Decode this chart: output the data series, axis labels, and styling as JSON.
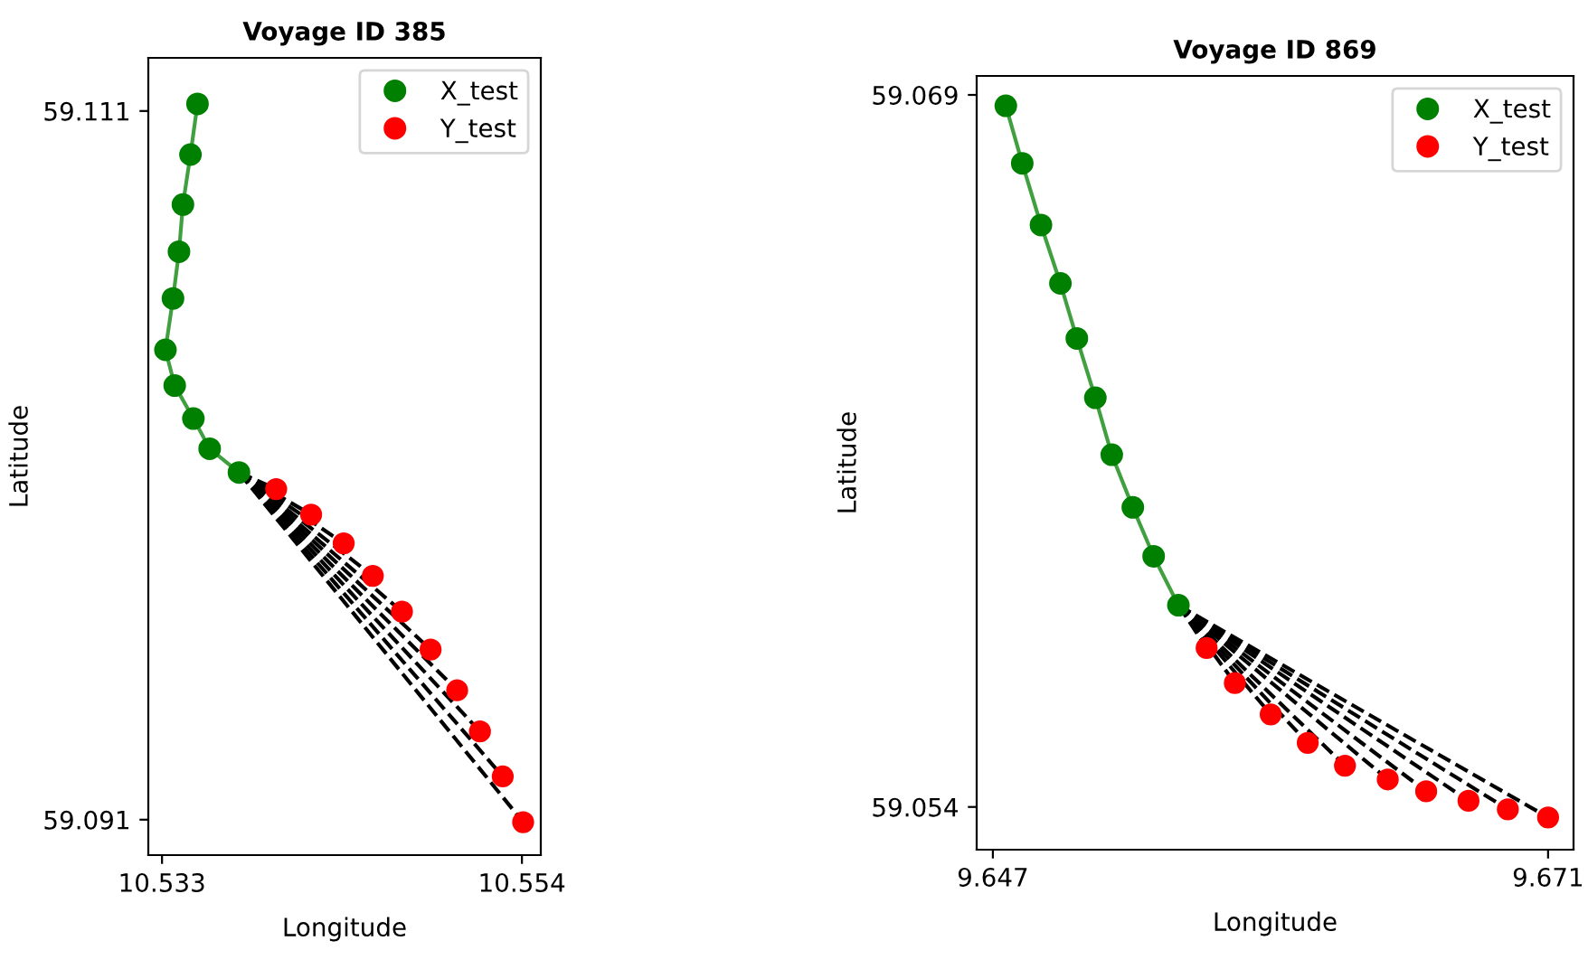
{
  "chart_data": [
    {
      "type": "line",
      "title": "Voyage ID 385",
      "xlabel": "Longitude",
      "ylabel": "Latitude",
      "xlim": [
        10.5322,
        10.5551
      ],
      "ylim": [
        59.09,
        59.1125
      ],
      "xticks": [
        10.533,
        10.554
      ],
      "yticks": [
        59.091,
        59.111
      ],
      "grid": false,
      "legend": "top right",
      "series": [
        {
          "name": "X_test",
          "type": "line",
          "marker": "circle",
          "color": "#008000",
          "x": [
            10.53507,
            10.53466,
            10.53422,
            10.53399,
            10.53364,
            10.5332,
            10.53374,
            10.53483,
            10.53578,
            10.53749
          ],
          "values": [
            59.1112,
            59.10977,
            59.10836,
            59.10703,
            59.10571,
            59.10426,
            59.10325,
            59.10232,
            59.10147,
            59.1008
          ]
        },
        {
          "type": "line",
          "line_style": "dashed",
          "color": "#000000",
          "x": [
            10.53749,
            10.53966
          ],
          "values": [
            59.1008,
            59.10033
          ]
        },
        {
          "type": "line",
          "line_style": "dashed",
          "color": "#000000",
          "x": [
            10.53749,
            10.5417
          ],
          "values": [
            59.1008,
            59.09961
          ]
        },
        {
          "type": "line",
          "line_style": "dashed",
          "color": "#000000",
          "x": [
            10.53749,
            10.5436
          ],
          "values": [
            59.1008,
            59.0988
          ]
        },
        {
          "type": "line",
          "line_style": "dashed",
          "color": "#000000",
          "x": [
            10.53749,
            10.5453
          ],
          "values": [
            59.1008,
            59.09788
          ]
        },
        {
          "type": "line",
          "line_style": "dashed",
          "color": "#000000",
          "x": [
            10.53749,
            10.547
          ],
          "values": [
            59.1008,
            59.09687
          ]
        },
        {
          "type": "line",
          "line_style": "dashed",
          "color": "#000000",
          "x": [
            10.53749,
            10.54867
          ],
          "values": [
            59.1008,
            59.0958
          ]
        },
        {
          "type": "line",
          "line_style": "dashed",
          "color": "#000000",
          "x": [
            10.53749,
            10.55022
          ],
          "values": [
            59.1008,
            59.09465
          ]
        },
        {
          "type": "line",
          "line_style": "dashed",
          "color": "#000000",
          "x": [
            10.53749,
            10.55155
          ],
          "values": [
            59.1008,
            59.09349
          ]
        },
        {
          "type": "line",
          "line_style": "dashed",
          "color": "#000000",
          "x": [
            10.53749,
            10.55288
          ],
          "values": [
            59.1008,
            59.09222
          ]
        },
        {
          "type": "line",
          "line_style": "dashed",
          "color": "#000000",
          "x": [
            10.53749,
            10.55407
          ],
          "values": [
            59.1008,
            59.09093
          ]
        },
        {
          "name": "Y_test",
          "type": "scatter",
          "marker": "circle",
          "color": "#ff0000",
          "x": [
            10.53966,
            10.5417,
            10.5436,
            10.5453,
            10.547,
            10.54867,
            10.55022,
            10.55155,
            10.55288,
            10.55407
          ],
          "values": [
            59.10033,
            59.09961,
            59.0988,
            59.09788,
            59.09687,
            59.0958,
            59.09465,
            59.09349,
            59.09222,
            59.09093
          ]
        }
      ]
    },
    {
      "type": "line",
      "title": "Voyage ID 869",
      "xlabel": "Longitude",
      "ylabel": "Latitude",
      "xlim": [
        9.6463,
        9.6721
      ],
      "ylim": [
        59.0531,
        59.0694
      ],
      "xticks": [
        9.647,
        9.671
      ],
      "yticks": [
        59.054,
        59.069
      ],
      "grid": false,
      "legend": "top right",
      "series": [
        {
          "name": "X_test",
          "type": "line",
          "marker": "circle",
          "color": "#008000",
          "x": [
            9.64756,
            9.64827,
            9.64908,
            9.64992,
            9.65063,
            9.65143,
            9.65214,
            9.65305,
            9.65395,
            9.65502
          ],
          "values": [
            59.06877,
            59.06756,
            59.06626,
            59.06503,
            59.06387,
            59.06262,
            59.06142,
            59.06031,
            59.05928,
            59.05825
          ]
        },
        {
          "type": "line",
          "line_style": "dashed",
          "color": "#000000",
          "x": [
            9.65502,
            9.65624
          ],
          "values": [
            59.05825,
            59.05735
          ]
        },
        {
          "type": "line",
          "line_style": "dashed",
          "color": "#000000",
          "x": [
            9.65502,
            9.65746
          ],
          "values": [
            59.05825,
            59.05661
          ]
        },
        {
          "type": "line",
          "line_style": "dashed",
          "color": "#000000",
          "x": [
            9.65502,
            9.65901
          ],
          "values": [
            59.05825,
            59.05595
          ]
        },
        {
          "type": "line",
          "line_style": "dashed",
          "color": "#000000",
          "x": [
            9.65502,
            9.66061
          ],
          "values": [
            59.05825,
            59.05535
          ]
        },
        {
          "type": "line",
          "line_style": "dashed",
          "color": "#000000",
          "x": [
            9.65502,
            9.66222
          ],
          "values": [
            59.05825,
            59.05487
          ]
        },
        {
          "type": "line",
          "line_style": "dashed",
          "color": "#000000",
          "x": [
            9.65502,
            9.66407
          ],
          "values": [
            59.05825,
            59.05458
          ]
        },
        {
          "type": "line",
          "line_style": "dashed",
          "color": "#000000",
          "x": [
            9.65502,
            9.66573
          ],
          "values": [
            59.05825,
            59.05433
          ]
        },
        {
          "type": "line",
          "line_style": "dashed",
          "color": "#000000",
          "x": [
            9.65502,
            9.66756
          ],
          "values": [
            59.05825,
            59.05413
          ]
        },
        {
          "type": "line",
          "line_style": "dashed",
          "color": "#000000",
          "x": [
            9.65502,
            9.66926
          ],
          "values": [
            59.05825,
            59.05395
          ]
        },
        {
          "type": "line",
          "line_style": "dashed",
          "color": "#000000",
          "x": [
            9.65502,
            9.671
          ],
          "values": [
            59.05825,
            59.05378
          ]
        },
        {
          "name": "Y_test",
          "type": "scatter",
          "marker": "circle",
          "color": "#ff0000",
          "x": [
            9.65624,
            9.65746,
            9.65901,
            9.66061,
            9.66222,
            9.66407,
            9.66573,
            9.66756,
            9.66926,
            9.671
          ],
          "values": [
            59.05735,
            59.05661,
            59.05595,
            59.05535,
            59.05487,
            59.05458,
            59.05433,
            59.05413,
            59.05395,
            59.05378
          ]
        }
      ]
    }
  ]
}
